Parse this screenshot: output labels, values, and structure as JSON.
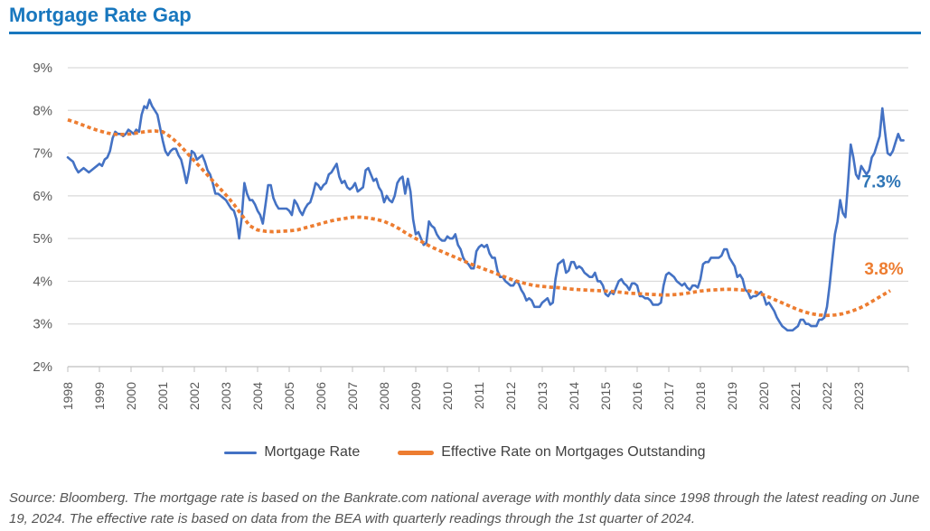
{
  "title": "Mortgage Rate Gap",
  "accent_color": "#1877BE",
  "source_note": "Source: Bloomberg. The mortgage rate is based on the Bankrate.com national average with monthly data since 1998 through the latest reading on June 19, 2024. The effective rate is based on data from the BEA with quarterly readings through the 1st quarter of 2024.",
  "chart_data": {
    "type": "line",
    "title": "Mortgage Rate Gap",
    "xlabel": "",
    "ylabel": "",
    "ylim": [
      2,
      9
    ],
    "x_range": [
      1998,
      2024.6
    ],
    "grid": "horizontal",
    "legend_position": "bottom",
    "y_axis_labels": [
      "9%",
      "8%",
      "7%",
      "6%",
      "5%",
      "4%",
      "3%",
      "2%"
    ],
    "x_axis_labels": [
      "1998",
      "1999",
      "2000",
      "2001",
      "2002",
      "2003",
      "2004",
      "2005",
      "2006",
      "2007",
      "2008",
      "2009",
      "2010",
      "2011",
      "2012",
      "2013",
      "2014",
      "2015",
      "2016",
      "2017",
      "2018",
      "2019",
      "2020",
      "2021",
      "2022",
      "2023"
    ],
    "series": [
      {
        "name": "Mortgage Rate",
        "color": "#4472C4",
        "style": "solid",
        "x_start": 1998,
        "points_per_year": 12,
        "values": [
          6.9,
          6.85,
          6.8,
          6.65,
          6.55,
          6.6,
          6.65,
          6.6,
          6.55,
          6.6,
          6.65,
          6.7,
          6.75,
          6.7,
          6.85,
          6.9,
          7.05,
          7.35,
          7.5,
          7.45,
          7.45,
          7.4,
          7.45,
          7.55,
          7.5,
          7.45,
          7.55,
          7.5,
          7.9,
          8.1,
          8.05,
          8.25,
          8.1,
          8.0,
          7.9,
          7.6,
          7.3,
          7.05,
          6.95,
          7.05,
          7.1,
          7.1,
          6.95,
          6.85,
          6.6,
          6.3,
          6.6,
          7.05,
          7.0,
          6.85,
          6.9,
          6.95,
          6.8,
          6.6,
          6.5,
          6.3,
          6.05,
          6.05,
          6.0,
          5.95,
          5.9,
          5.8,
          5.7,
          5.65,
          5.45,
          5.0,
          5.5,
          6.3,
          6.05,
          5.9,
          5.9,
          5.8,
          5.65,
          5.55,
          5.35,
          5.8,
          6.25,
          6.25,
          5.95,
          5.8,
          5.7,
          5.7,
          5.7,
          5.7,
          5.65,
          5.55,
          5.9,
          5.8,
          5.65,
          5.55,
          5.7,
          5.8,
          5.85,
          6.05,
          6.3,
          6.25,
          6.15,
          6.25,
          6.3,
          6.5,
          6.55,
          6.65,
          6.75,
          6.45,
          6.3,
          6.35,
          6.2,
          6.15,
          6.2,
          6.3,
          6.1,
          6.15,
          6.2,
          6.6,
          6.65,
          6.5,
          6.35,
          6.4,
          6.2,
          6.1,
          5.85,
          6.0,
          5.9,
          5.85,
          6.0,
          6.3,
          6.4,
          6.45,
          6.05,
          6.4,
          6.1,
          5.45,
          5.1,
          5.15,
          5.0,
          4.85,
          4.9,
          5.4,
          5.3,
          5.25,
          5.1,
          5.0,
          4.95,
          4.95,
          5.05,
          5.0,
          5.0,
          5.1,
          4.85,
          4.75,
          4.55,
          4.45,
          4.4,
          4.3,
          4.3,
          4.7,
          4.8,
          4.85,
          4.8,
          4.85,
          4.65,
          4.55,
          4.55,
          4.25,
          4.1,
          4.1,
          4.0,
          3.95,
          3.9,
          3.9,
          4.0,
          3.95,
          3.8,
          3.7,
          3.55,
          3.6,
          3.55,
          3.4,
          3.4,
          3.4,
          3.5,
          3.55,
          3.6,
          3.45,
          3.5,
          4.05,
          4.4,
          4.45,
          4.5,
          4.2,
          4.25,
          4.45,
          4.45,
          4.3,
          4.35,
          4.3,
          4.2,
          4.15,
          4.1,
          4.1,
          4.2,
          4.0,
          4.0,
          3.9,
          3.7,
          3.65,
          3.75,
          3.7,
          3.85,
          4.0,
          4.05,
          3.95,
          3.9,
          3.8,
          3.95,
          3.95,
          3.9,
          3.65,
          3.65,
          3.6,
          3.6,
          3.55,
          3.45,
          3.45,
          3.45,
          3.5,
          3.9,
          4.15,
          4.2,
          4.15,
          4.1,
          4.0,
          3.95,
          3.9,
          3.95,
          3.85,
          3.8,
          3.9,
          3.9,
          3.85,
          4.05,
          4.4,
          4.45,
          4.45,
          4.55,
          4.55,
          4.55,
          4.55,
          4.6,
          4.75,
          4.75,
          4.55,
          4.45,
          4.35,
          4.1,
          4.15,
          4.05,
          3.8,
          3.75,
          3.6,
          3.65,
          3.65,
          3.7,
          3.75,
          3.65,
          3.45,
          3.5,
          3.4,
          3.3,
          3.15,
          3.05,
          2.95,
          2.9,
          2.85,
          2.85,
          2.85,
          2.9,
          2.95,
          3.1,
          3.1,
          3.0,
          3.0,
          2.95,
          2.95,
          2.95,
          3.1,
          3.1,
          3.15,
          3.4,
          3.9,
          4.5,
          5.1,
          5.4,
          5.9,
          5.6,
          5.5,
          6.3,
          7.2,
          6.9,
          6.5,
          6.4,
          6.7,
          6.6,
          6.5,
          6.6,
          6.9,
          7.0,
          7.2,
          7.4,
          8.05,
          7.5,
          7.0,
          6.95,
          7.05,
          7.25,
          7.45,
          7.3,
          7.3
        ]
      },
      {
        "name": "Effective Rate on Mortgages Outstanding",
        "color": "#ED7D31",
        "style": "dotted",
        "x_start": 1998,
        "points_per_year": 4,
        "values": [
          7.78,
          7.72,
          7.65,
          7.58,
          7.52,
          7.47,
          7.44,
          7.44,
          7.45,
          7.48,
          7.51,
          7.52,
          7.5,
          7.38,
          7.22,
          7.02,
          6.82,
          6.62,
          6.42,
          6.22,
          6.02,
          5.8,
          5.55,
          5.3,
          5.2,
          5.17,
          5.16,
          5.17,
          5.18,
          5.2,
          5.25,
          5.3,
          5.35,
          5.4,
          5.44,
          5.47,
          5.5,
          5.5,
          5.48,
          5.45,
          5.4,
          5.32,
          5.22,
          5.1,
          5.0,
          4.9,
          4.8,
          4.72,
          4.64,
          4.56,
          4.48,
          4.4,
          4.33,
          4.26,
          4.19,
          4.12,
          4.05,
          3.99,
          3.94,
          3.9,
          3.88,
          3.86,
          3.85,
          3.83,
          3.81,
          3.8,
          3.79,
          3.78,
          3.77,
          3.76,
          3.74,
          3.72,
          3.71,
          3.7,
          3.69,
          3.68,
          3.68,
          3.69,
          3.71,
          3.74,
          3.77,
          3.79,
          3.8,
          3.81,
          3.81,
          3.8,
          3.78,
          3.74,
          3.68,
          3.6,
          3.52,
          3.44,
          3.36,
          3.29,
          3.24,
          3.21,
          3.2,
          3.21,
          3.24,
          3.29,
          3.36,
          3.45,
          3.56,
          3.67,
          3.78
        ]
      }
    ],
    "annotations": [
      {
        "text": "7.3%",
        "color": "#2E75B6",
        "x": 2023.72,
        "y": 6.32
      },
      {
        "text": "3.8%",
        "color": "#ED7D31",
        "x": 2023.8,
        "y": 4.28
      }
    ]
  },
  "legend": {
    "items": [
      {
        "label": "Mortgage Rate",
        "color": "#4472C4"
      },
      {
        "label": "Effective Rate on Mortgages Outstanding",
        "color": "#ED7D31"
      }
    ]
  }
}
